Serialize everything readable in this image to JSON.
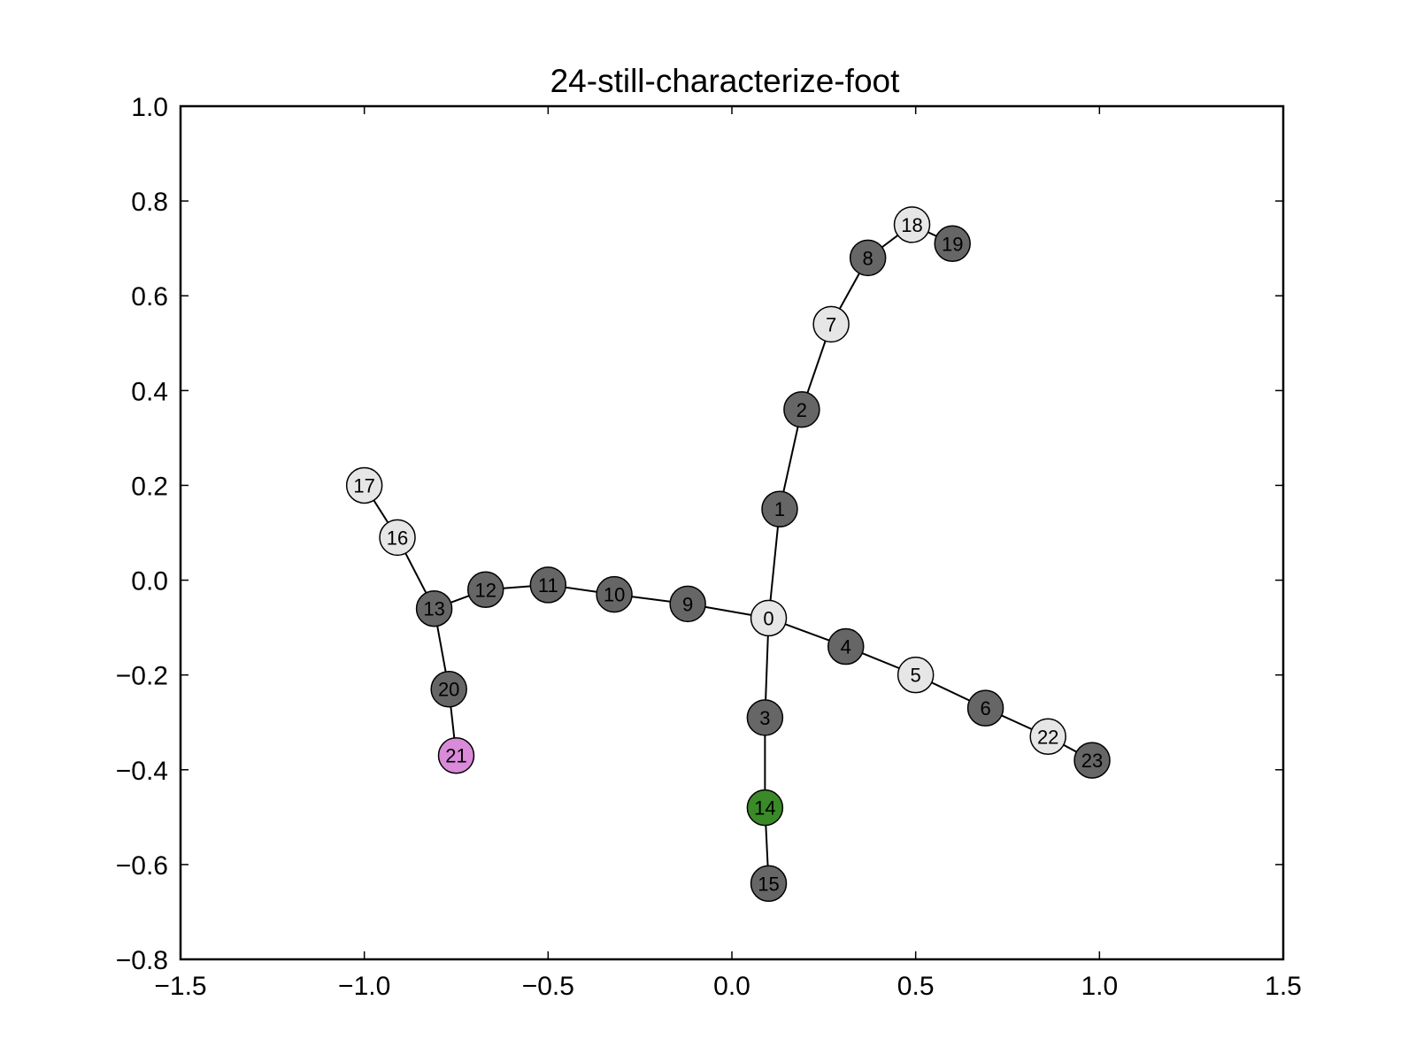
{
  "title": "24-still-characterize-foot",
  "chart_data": {
    "type": "scatter",
    "title": "24-still-characterize-foot",
    "xlim": [
      -1.5,
      1.5
    ],
    "ylim": [
      -0.8,
      1.0
    ],
    "x_ticks": [
      -1.5,
      -1.0,
      -0.5,
      0.0,
      0.5,
      1.0,
      1.5
    ],
    "x_tick_labels": [
      "−1.5",
      "−1.0",
      "−0.5",
      "0.0",
      "0.5",
      "1.0",
      "1.5"
    ],
    "y_ticks": [
      1.0,
      0.8,
      0.6,
      0.4,
      0.2,
      0.0,
      -0.2,
      -0.4,
      -0.6,
      -0.8
    ],
    "y_tick_labels": [
      "1.0",
      "0.8",
      "0.6",
      "0.4",
      "0.2",
      "0.0",
      "−0.2",
      "−0.4",
      "−0.6",
      "−0.8"
    ],
    "grid": false,
    "colors": {
      "dark": "#666666",
      "light": "#e6e6e6",
      "green": "#3a8a28",
      "purple": "#d98ad9"
    },
    "nodes": [
      {
        "id": "0",
        "x": 0.1,
        "y": -0.08,
        "color": "light"
      },
      {
        "id": "1",
        "x": 0.13,
        "y": 0.15,
        "color": "dark"
      },
      {
        "id": "2",
        "x": 0.19,
        "y": 0.36,
        "color": "dark"
      },
      {
        "id": "3",
        "x": 0.09,
        "y": -0.29,
        "color": "dark"
      },
      {
        "id": "4",
        "x": 0.31,
        "y": -0.14,
        "color": "dark"
      },
      {
        "id": "5",
        "x": 0.5,
        "y": -0.2,
        "color": "light"
      },
      {
        "id": "6",
        "x": 0.69,
        "y": -0.27,
        "color": "dark"
      },
      {
        "id": "7",
        "x": 0.27,
        "y": 0.54,
        "color": "light"
      },
      {
        "id": "8",
        "x": 0.37,
        "y": 0.68,
        "color": "dark"
      },
      {
        "id": "9",
        "x": -0.12,
        "y": -0.05,
        "color": "dark"
      },
      {
        "id": "10",
        "x": -0.32,
        "y": -0.03,
        "color": "dark"
      },
      {
        "id": "11",
        "x": -0.5,
        "y": -0.01,
        "color": "dark"
      },
      {
        "id": "12",
        "x": -0.67,
        "y": -0.02,
        "color": "dark"
      },
      {
        "id": "13",
        "x": -0.81,
        "y": -0.06,
        "color": "dark"
      },
      {
        "id": "14",
        "x": 0.09,
        "y": -0.48,
        "color": "green"
      },
      {
        "id": "15",
        "x": 0.1,
        "y": -0.64,
        "color": "dark"
      },
      {
        "id": "16",
        "x": -0.91,
        "y": 0.09,
        "color": "light"
      },
      {
        "id": "17",
        "x": -1.0,
        "y": 0.2,
        "color": "light"
      },
      {
        "id": "18",
        "x": 0.49,
        "y": 0.75,
        "color": "light"
      },
      {
        "id": "19",
        "x": 0.6,
        "y": 0.71,
        "color": "dark"
      },
      {
        "id": "20",
        "x": -0.77,
        "y": -0.23,
        "color": "dark"
      },
      {
        "id": "21",
        "x": -0.75,
        "y": -0.37,
        "color": "purple"
      },
      {
        "id": "22",
        "x": 0.86,
        "y": -0.33,
        "color": "light"
      },
      {
        "id": "23",
        "x": 0.98,
        "y": -0.38,
        "color": "dark"
      }
    ],
    "edges": [
      [
        "0",
        "1"
      ],
      [
        "1",
        "2"
      ],
      [
        "2",
        "7"
      ],
      [
        "7",
        "8"
      ],
      [
        "8",
        "18"
      ],
      [
        "18",
        "19"
      ],
      [
        "0",
        "3"
      ],
      [
        "3",
        "14"
      ],
      [
        "14",
        "15"
      ],
      [
        "0",
        "4"
      ],
      [
        "4",
        "5"
      ],
      [
        "5",
        "6"
      ],
      [
        "6",
        "22"
      ],
      [
        "22",
        "23"
      ],
      [
        "0",
        "9"
      ],
      [
        "9",
        "10"
      ],
      [
        "10",
        "11"
      ],
      [
        "11",
        "12"
      ],
      [
        "12",
        "13"
      ],
      [
        "13",
        "16"
      ],
      [
        "16",
        "17"
      ],
      [
        "13",
        "20"
      ],
      [
        "20",
        "21"
      ]
    ]
  }
}
